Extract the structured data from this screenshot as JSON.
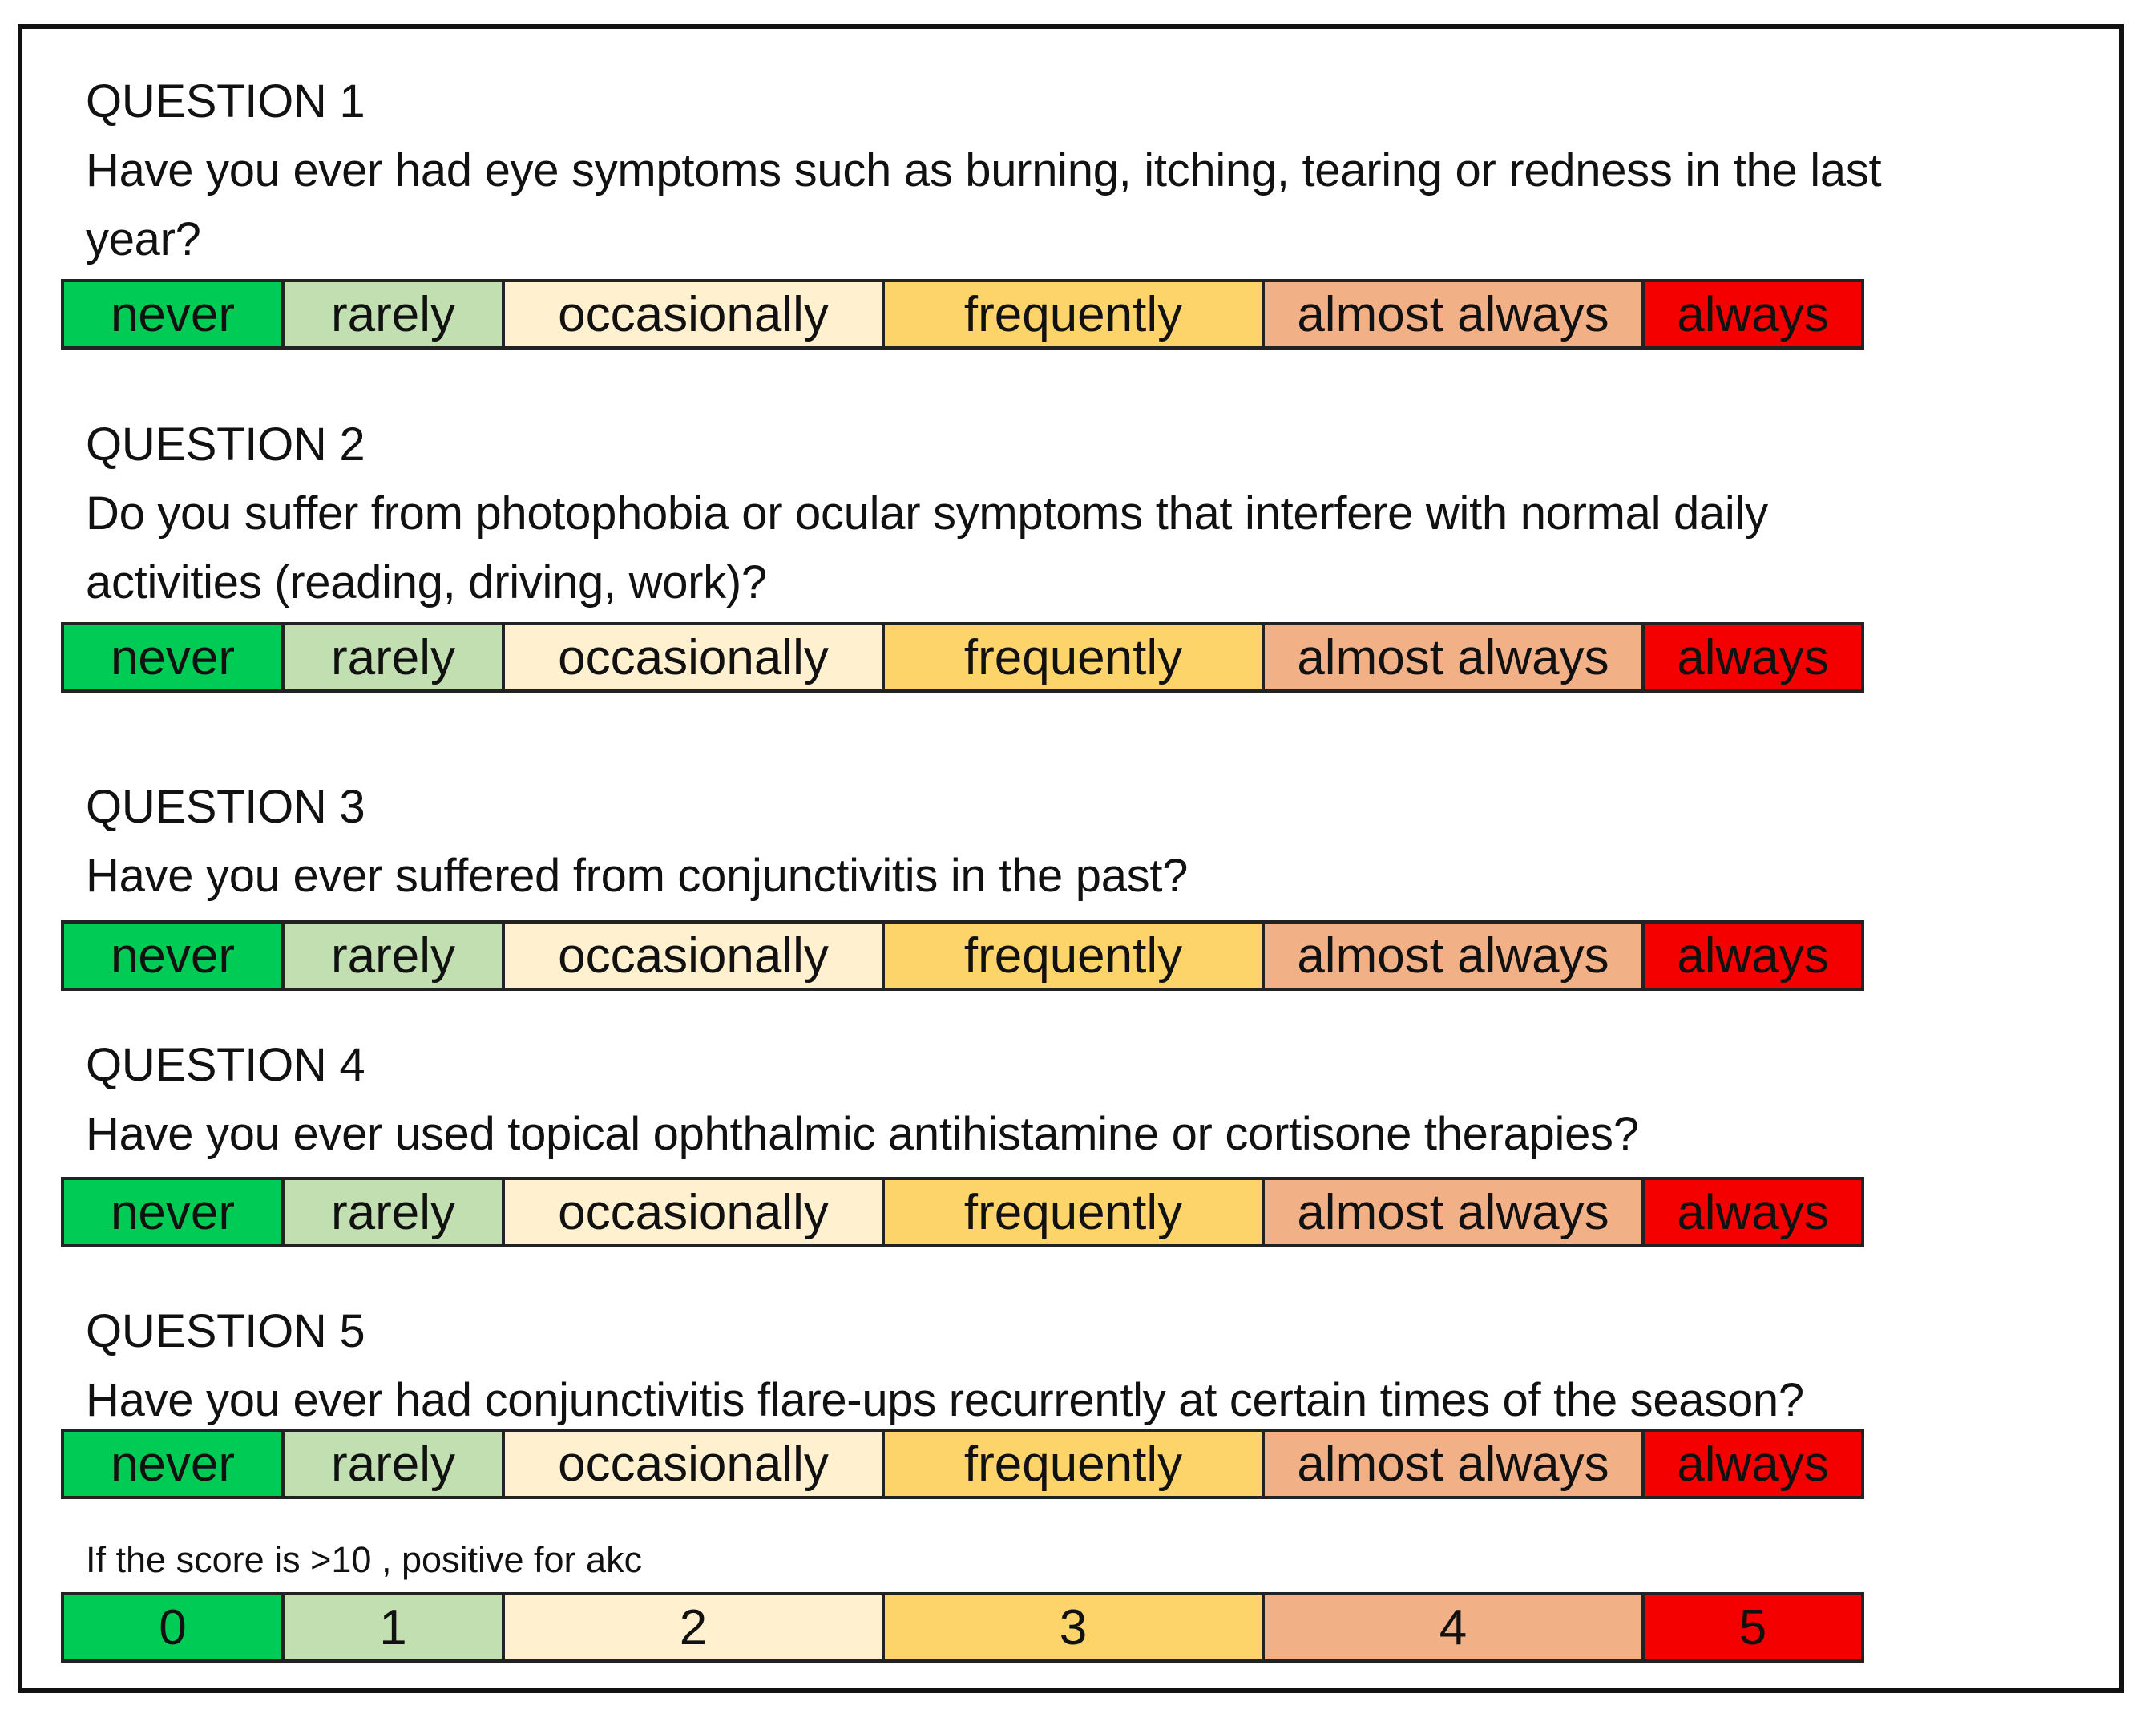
{
  "questions": [
    {
      "title": "QUESTION 1",
      "text_lines": [
        "Have you ever had eye symptoms such as burning, itching, tearing or redness in the last",
        "year?"
      ]
    },
    {
      "title": "QUESTION 2",
      "text_lines": [
        "Do you suffer from photophobia or ocular symptoms that interfere with normal daily",
        "activities (reading, driving, work)?"
      ]
    },
    {
      "title": "QUESTION 3",
      "text_lines": [
        "Have you ever suffered from conjunctivitis in the past?"
      ]
    },
    {
      "title": "QUESTION 4",
      "text_lines": [
        "Have you ever used topical ophthalmic antihistamine or cortisone therapies?"
      ]
    },
    {
      "title": "QUESTION 5",
      "text_lines": [
        "Have you ever had conjunctivitis flare-ups recurrently at certain times of the season?"
      ]
    }
  ],
  "answer_options": [
    "never",
    "rarely",
    "occasionally",
    "frequently",
    "almost always",
    "always"
  ],
  "score_note": "If the score is >10 , positive for akc",
  "scores": [
    "0",
    "1",
    "2",
    "3",
    "4",
    "5"
  ],
  "colors": {
    "option_backgrounds": [
      "#00cc55",
      "#c2dfb2",
      "#fff0cf",
      "#fdd46a",
      "#f2b086",
      "#f50000"
    ],
    "border": "#222222"
  }
}
